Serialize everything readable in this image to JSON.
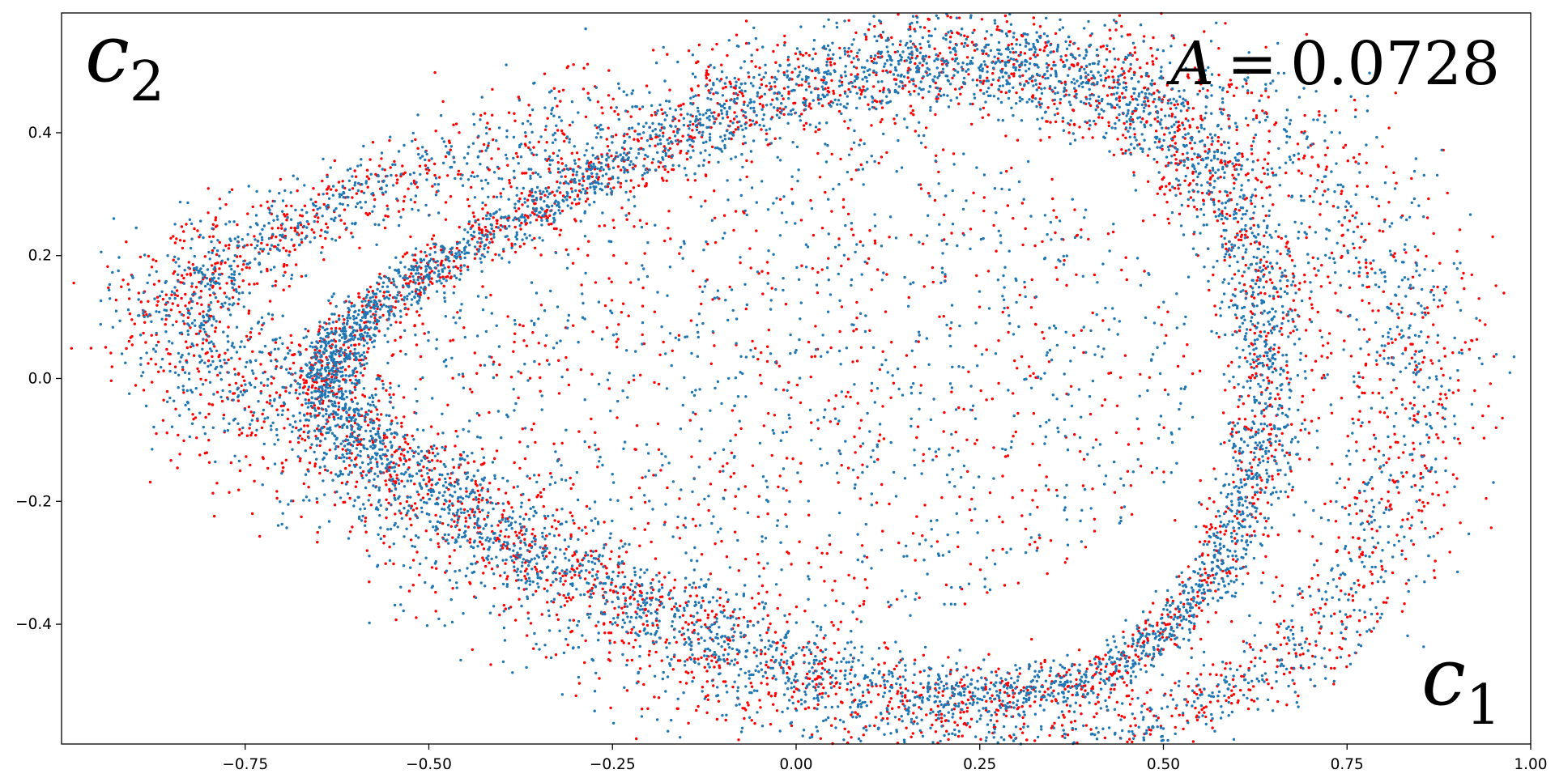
{
  "chart_data": {
    "type": "scatter",
    "title": "",
    "xlabel": "c1",
    "ylabel": "c2",
    "xlabel_main": "c",
    "xlabel_sub": "1",
    "ylabel_main": "c",
    "ylabel_sub": "2",
    "xlim": [
      -1.0,
      1.0
    ],
    "ylim": [
      -0.595,
      0.595
    ],
    "xticks": [
      -0.75,
      -0.5,
      -0.25,
      0.0,
      0.25,
      0.5,
      0.75,
      1.0
    ],
    "xtick_labels": [
      "−0.75",
      "−0.50",
      "−0.25",
      "0.00",
      "0.25",
      "0.50",
      "0.75",
      "1.00"
    ],
    "yticks": [
      0.4,
      0.2,
      0.0,
      -0.2,
      -0.4
    ],
    "ytick_labels": [
      "0.4",
      "0.2",
      "0.0",
      "−0.2",
      "−0.4"
    ],
    "grid": false,
    "annotation": {
      "text": "A = 0.0728",
      "symbol": "A",
      "equals": "=",
      "value": "0.0728",
      "position": "top-right"
    },
    "series": [
      {
        "color": "#1f77b4",
        "description_of_structure": [
          {
            "kind": "inner_band",
            "center": [
              0.0,
              0.0
            ],
            "semi_axes": [
              0.64,
              0.47
            ],
            "tilt_deg": 0,
            "width": 0.05,
            "density": 4200
          },
          {
            "kind": "outer_band",
            "center": [
              0.0,
              0.0
            ],
            "semi_axes": [
              0.84,
              0.5
            ],
            "tilt_deg": -8,
            "width": 0.09,
            "density": 2600
          },
          {
            "kind": "interior_fill",
            "center": [
              0.0,
              0.0
            ],
            "semi_axes": [
              0.6,
              0.44
            ],
            "density": 900
          }
        ]
      },
      {
        "color": "#ff0000",
        "description_of_structure": [
          {
            "kind": "inner_band",
            "center": [
              0.0,
              0.0
            ],
            "semi_axes": [
              0.64,
              0.47
            ],
            "tilt_deg": 0,
            "width": 0.06,
            "density": 2200
          },
          {
            "kind": "outer_band",
            "center": [
              0.0,
              0.0
            ],
            "semi_axes": [
              0.84,
              0.5
            ],
            "tilt_deg": -8,
            "width": 0.1,
            "density": 2200
          },
          {
            "kind": "interior_fill",
            "center": [
              0.0,
              0.0
            ],
            "semi_axes": [
              0.6,
              0.44
            ],
            "density": 700
          }
        ]
      }
    ]
  }
}
